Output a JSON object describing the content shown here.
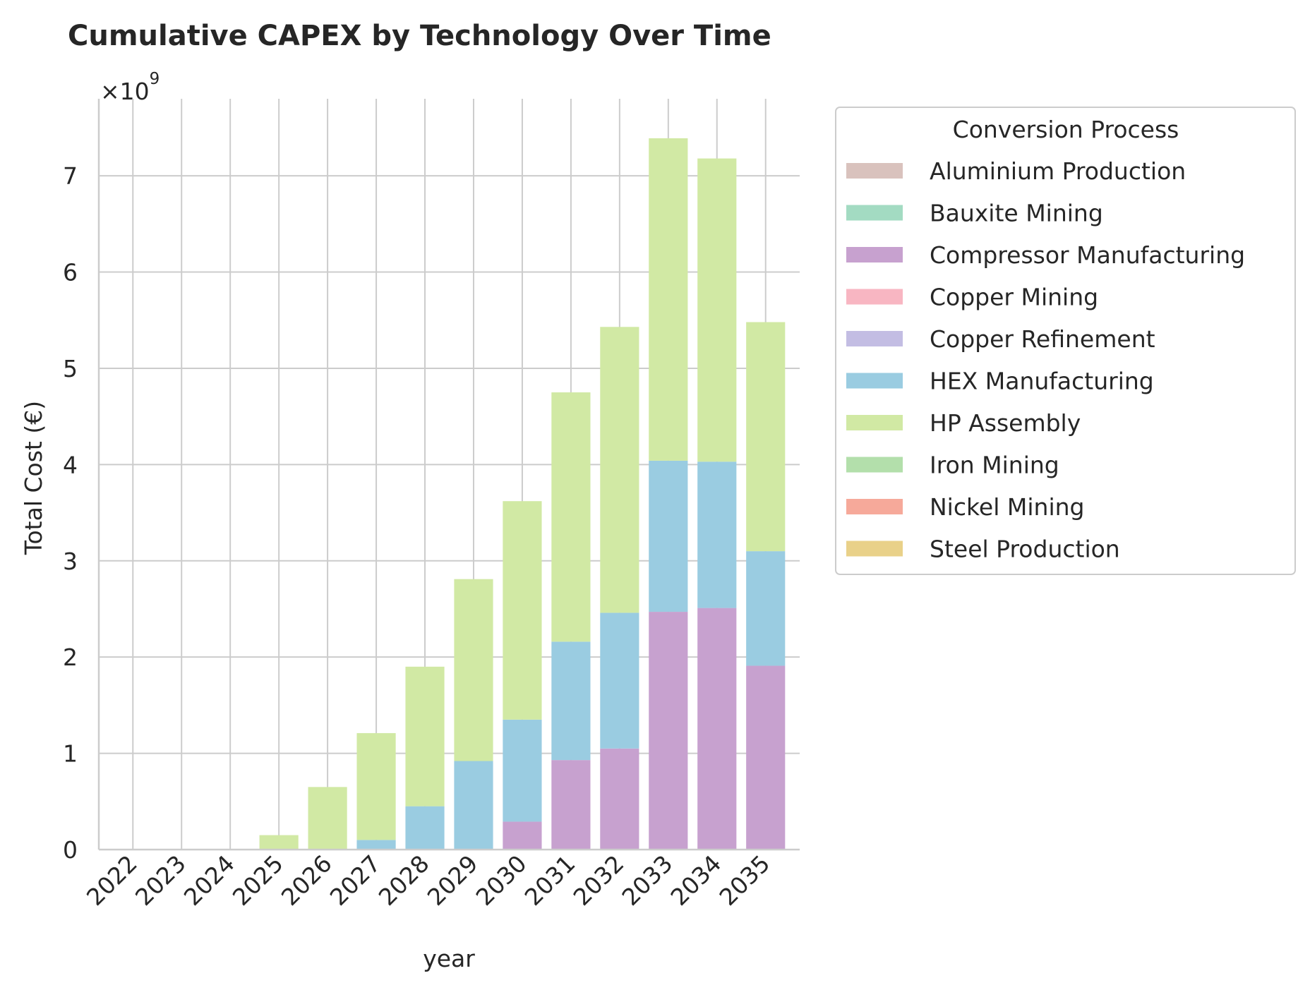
{
  "chart_data": {
    "type": "bar",
    "stacked": true,
    "title": "Cumulative CAPEX by Technology Over Time",
    "xlabel": "year",
    "ylabel": "Total Cost (€)",
    "y_multiplier_base": "×10",
    "y_multiplier_exp": "9",
    "ylim": [
      0,
      7.8
    ],
    "yticks": [
      0,
      1,
      2,
      3,
      4,
      5,
      6,
      7
    ],
    "ytick_labels": [
      "0",
      "1",
      "2",
      "3",
      "4",
      "5",
      "6",
      "7"
    ],
    "grid": true,
    "legend_title": "Conversion Process",
    "legend_position": "outside-right",
    "categories": [
      "2022",
      "2023",
      "2024",
      "2025",
      "2026",
      "2027",
      "2028",
      "2029",
      "2030",
      "2031",
      "2032",
      "2033",
      "2034",
      "2035"
    ],
    "series": [
      {
        "name": "Aluminium Production",
        "color": "#d9c2bd",
        "values": [
          0,
          0,
          0,
          0,
          0,
          0,
          0,
          0,
          0,
          0,
          0,
          0,
          0,
          0
        ]
      },
      {
        "name": "Bauxite Mining",
        "color": "#a3dbc2",
        "values": [
          0,
          0,
          0,
          0,
          0,
          0,
          0,
          0,
          0,
          0,
          0,
          0,
          0,
          0
        ]
      },
      {
        "name": "Compressor Manufacturing",
        "color": "#c7a1cf",
        "values": [
          0,
          0,
          0,
          0,
          0,
          0,
          0,
          0,
          0.29,
          0.93,
          1.05,
          2.47,
          2.51,
          1.91
        ]
      },
      {
        "name": "Copper Mining",
        "color": "#f8b6c2",
        "values": [
          0,
          0,
          0,
          0,
          0,
          0,
          0,
          0,
          0,
          0,
          0,
          0,
          0,
          0
        ]
      },
      {
        "name": "Copper Refinement",
        "color": "#c3bde3",
        "values": [
          0,
          0,
          0,
          0,
          0,
          0,
          0,
          0,
          0,
          0,
          0,
          0,
          0,
          0
        ]
      },
      {
        "name": "HEX Manufacturing",
        "color": "#9acce1",
        "values": [
          0,
          0,
          0,
          0,
          0,
          0.1,
          0.45,
          0.92,
          1.06,
          1.23,
          1.41,
          1.57,
          1.52,
          1.19
        ]
      },
      {
        "name": "HP Assembly",
        "color": "#d1e9a4",
        "values": [
          0,
          0,
          0,
          0.15,
          0.65,
          1.11,
          1.45,
          1.89,
          2.27,
          2.59,
          2.97,
          3.35,
          3.15,
          2.38
        ]
      },
      {
        "name": "Iron Mining",
        "color": "#b3dfab",
        "values": [
          0,
          0,
          0,
          0,
          0,
          0,
          0,
          0,
          0,
          0,
          0,
          0,
          0,
          0
        ]
      },
      {
        "name": "Nickel Mining",
        "color": "#f6a99a",
        "values": [
          0,
          0,
          0,
          0,
          0,
          0,
          0,
          0,
          0,
          0,
          0,
          0,
          0,
          0
        ]
      },
      {
        "name": "Steel Production",
        "color": "#e9d189",
        "values": [
          0,
          0,
          0,
          0,
          0,
          0,
          0,
          0,
          0,
          0,
          0,
          0,
          0,
          0
        ]
      }
    ]
  }
}
